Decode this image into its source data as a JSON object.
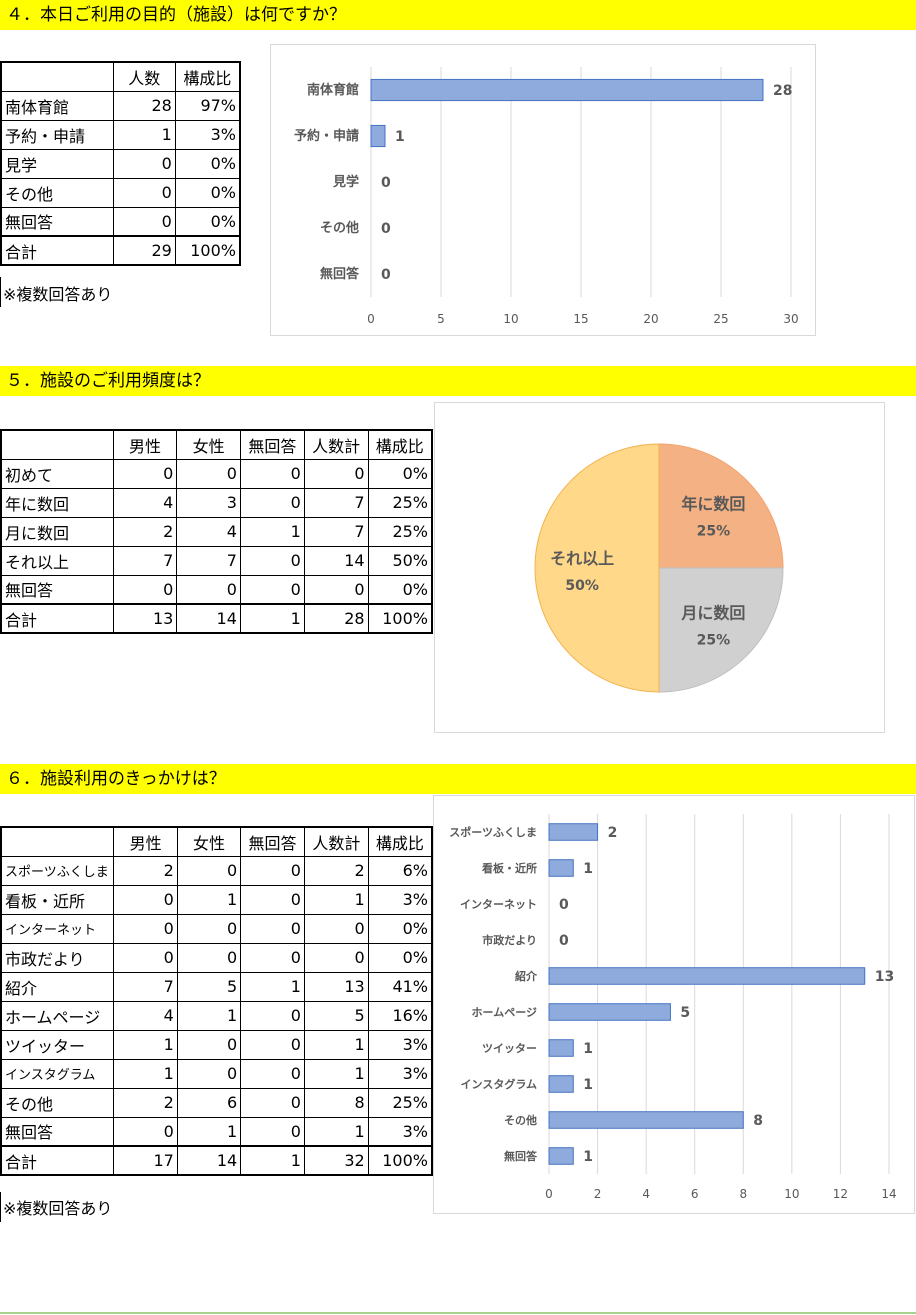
{
  "sections": {
    "q4": {
      "title": "４．本日ご利用の目的（施設）は何ですか？",
      "headers": [
        "",
        "人数",
        "構成比"
      ],
      "rows": [
        {
          "label": "南体育館",
          "count": "28",
          "ratio": "97%"
        },
        {
          "label": "予約・申請",
          "count": "1",
          "ratio": "3%"
        },
        {
          "label": "見学",
          "count": "0",
          "ratio": "0%"
        },
        {
          "label": "その他",
          "count": "0",
          "ratio": "0%"
        },
        {
          "label": "無回答",
          "count": "0",
          "ratio": "0%"
        }
      ],
      "total": {
        "label": "合計",
        "count": "29",
        "ratio": "100%"
      },
      "note": "※複数回答あり"
    },
    "q5": {
      "title": "５．施設のご利用頻度は？",
      "headers": [
        "",
        "男性",
        "女性",
        "無回答",
        "人数計",
        "構成比"
      ],
      "rows": [
        {
          "label": "初めて",
          "m": "0",
          "f": "0",
          "n": "0",
          "sum": "0",
          "ratio": "0%"
        },
        {
          "label": "年に数回",
          "m": "4",
          "f": "3",
          "n": "0",
          "sum": "7",
          "ratio": "25%"
        },
        {
          "label": "月に数回",
          "m": "2",
          "f": "4",
          "n": "1",
          "sum": "7",
          "ratio": "25%"
        },
        {
          "label": "それ以上",
          "m": "7",
          "f": "7",
          "n": "0",
          "sum": "14",
          "ratio": "50%"
        },
        {
          "label": "無回答",
          "m": "0",
          "f": "0",
          "n": "0",
          "sum": "0",
          "ratio": "0%"
        }
      ],
      "total": {
        "label": "合計",
        "m": "13",
        "f": "14",
        "n": "1",
        "sum": "28",
        "ratio": "100%"
      }
    },
    "q6": {
      "title": "６．施設利用のきっかけは？",
      "headers": [
        "",
        "男性",
        "女性",
        "無回答",
        "人数計",
        "構成比"
      ],
      "rows": [
        {
          "label": "スポーツふくしま",
          "m": "2",
          "f": "0",
          "n": "0",
          "sum": "2",
          "ratio": "6%"
        },
        {
          "label": "看板・近所",
          "m": "0",
          "f": "1",
          "n": "0",
          "sum": "1",
          "ratio": "3%"
        },
        {
          "label": "インターネット",
          "m": "0",
          "f": "0",
          "n": "0",
          "sum": "0",
          "ratio": "0%"
        },
        {
          "label": "市政だより",
          "m": "0",
          "f": "0",
          "n": "0",
          "sum": "0",
          "ratio": "0%"
        },
        {
          "label": "紹介",
          "m": "7",
          "f": "5",
          "n": "1",
          "sum": "13",
          "ratio": "41%"
        },
        {
          "label": "ホームページ",
          "m": "4",
          "f": "1",
          "n": "0",
          "sum": "5",
          "ratio": "16%"
        },
        {
          "label": "ツイッター",
          "m": "1",
          "f": "0",
          "n": "0",
          "sum": "1",
          "ratio": "3%"
        },
        {
          "label": "インスタグラム",
          "m": "1",
          "f": "0",
          "n": "0",
          "sum": "1",
          "ratio": "3%"
        },
        {
          "label": "その他",
          "m": "2",
          "f": "6",
          "n": "0",
          "sum": "8",
          "ratio": "25%"
        },
        {
          "label": "無回答",
          "m": "0",
          "f": "1",
          "n": "0",
          "sum": "1",
          "ratio": "3%"
        }
      ],
      "total": {
        "label": "合計",
        "m": "17",
        "f": "14",
        "n": "1",
        "sum": "32",
        "ratio": "100%"
      },
      "note": "※複数回答あり"
    }
  },
  "chart_data": [
    {
      "type": "bar",
      "orientation": "horizontal",
      "categories": [
        "南体育館",
        "予約・申請",
        "見学",
        "その他",
        "無回答"
      ],
      "values": [
        28,
        1,
        0,
        0,
        0
      ],
      "xlim": [
        0,
        30
      ],
      "xticks": [
        0,
        5,
        10,
        15,
        20,
        25,
        30
      ],
      "grid": true,
      "color": "#8faadc"
    },
    {
      "type": "pie",
      "labels": [
        "年に数回",
        "月に数回",
        "それ以上"
      ],
      "values": [
        25,
        25,
        50
      ],
      "value_labels": [
        "25%",
        "25%",
        "50%"
      ],
      "colors": [
        "#f4b183",
        "#d0d0d0",
        "#ffd88a"
      ]
    },
    {
      "type": "bar",
      "orientation": "horizontal",
      "categories": [
        "スポーツふくしま",
        "看板・近所",
        "インターネット",
        "市政だより",
        "紹介",
        "ホームページ",
        "ツイッター",
        "インスタグラム",
        "その他",
        "無回答"
      ],
      "values": [
        2,
        1,
        0,
        0,
        13,
        5,
        1,
        1,
        8,
        1
      ],
      "xlim": [
        0,
        14
      ],
      "xticks": [
        0,
        2,
        4,
        6,
        8,
        10,
        12,
        14
      ],
      "grid": true,
      "color": "#8faadc"
    }
  ]
}
